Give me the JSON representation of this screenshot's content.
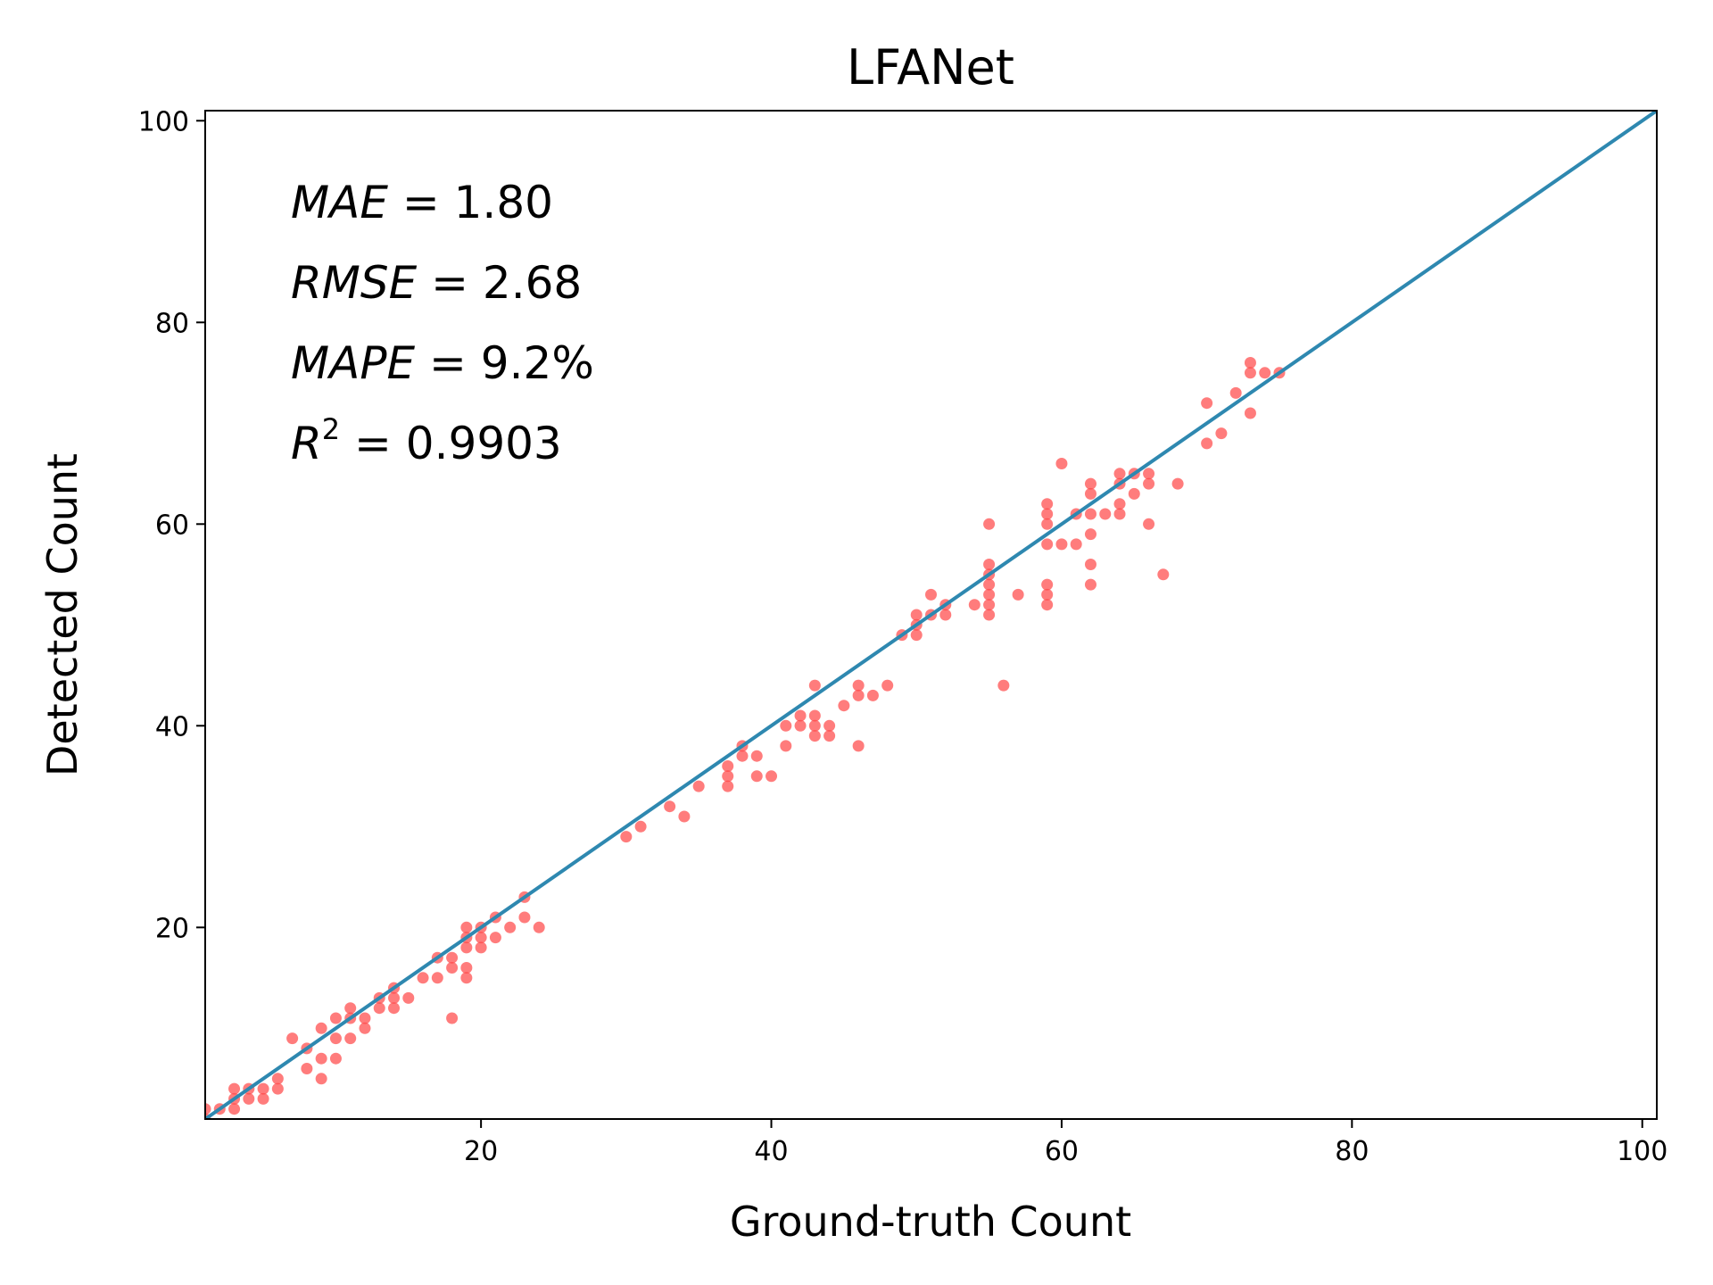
{
  "chart_data": {
    "type": "scatter",
    "title": "LFANet",
    "xlabel": "Ground-truth Count",
    "ylabel": "Detected Count",
    "xlim": [
      1,
      101
    ],
    "ylim": [
      1,
      101
    ],
    "xticks": [
      20,
      40,
      60,
      80,
      100
    ],
    "yticks": [
      20,
      40,
      60,
      80,
      100
    ],
    "xtick_labels": [
      "20",
      "40",
      "60",
      "80",
      "100"
    ],
    "ytick_labels": [
      "20",
      "40",
      "60",
      "80",
      "100"
    ],
    "grid": false,
    "point_color": "#ff4444",
    "line_color": "#2e88b0",
    "reference_line": {
      "from": [
        1,
        1
      ],
      "to": [
        101,
        101
      ]
    },
    "annotations": [
      {
        "name": "MAE",
        "value": "1.80",
        "unit": ""
      },
      {
        "name": "RMSE",
        "value": "2.68",
        "unit": ""
      },
      {
        "name": "MAPE",
        "value": "9.2",
        "unit": "%"
      },
      {
        "name": "R",
        "sup": "2",
        "value": "0.9903",
        "unit": ""
      }
    ],
    "points": [
      [
        1,
        1
      ],
      [
        1,
        2
      ],
      [
        2,
        2
      ],
      [
        3,
        2
      ],
      [
        3,
        3
      ],
      [
        3,
        4
      ],
      [
        4,
        3
      ],
      [
        4,
        4
      ],
      [
        5,
        3
      ],
      [
        5,
        4
      ],
      [
        6,
        4
      ],
      [
        6,
        5
      ],
      [
        7,
        9
      ],
      [
        8,
        6
      ],
      [
        8,
        8
      ],
      [
        9,
        5
      ],
      [
        9,
        7
      ],
      [
        9,
        10
      ],
      [
        10,
        7
      ],
      [
        10,
        9
      ],
      [
        10,
        11
      ],
      [
        11,
        9
      ],
      [
        11,
        11
      ],
      [
        11,
        12
      ],
      [
        12,
        10
      ],
      [
        12,
        11
      ],
      [
        13,
        12
      ],
      [
        13,
        13
      ],
      [
        14,
        12
      ],
      [
        14,
        13
      ],
      [
        14,
        14
      ],
      [
        15,
        13
      ],
      [
        16,
        15
      ],
      [
        17,
        15
      ],
      [
        17,
        17
      ],
      [
        18,
        11
      ],
      [
        18,
        16
      ],
      [
        18,
        17
      ],
      [
        19,
        15
      ],
      [
        19,
        16
      ],
      [
        19,
        18
      ],
      [
        19,
        19
      ],
      [
        19,
        20
      ],
      [
        20,
        18
      ],
      [
        20,
        19
      ],
      [
        20,
        20
      ],
      [
        21,
        19
      ],
      [
        21,
        21
      ],
      [
        22,
        20
      ],
      [
        23,
        21
      ],
      [
        23,
        23
      ],
      [
        24,
        20
      ],
      [
        30,
        29
      ],
      [
        31,
        30
      ],
      [
        33,
        32
      ],
      [
        34,
        31
      ],
      [
        35,
        34
      ],
      [
        37,
        34
      ],
      [
        37,
        35
      ],
      [
        37,
        36
      ],
      [
        38,
        37
      ],
      [
        38,
        38
      ],
      [
        39,
        35
      ],
      [
        39,
        37
      ],
      [
        40,
        35
      ],
      [
        41,
        38
      ],
      [
        41,
        40
      ],
      [
        42,
        40
      ],
      [
        42,
        41
      ],
      [
        43,
        39
      ],
      [
        43,
        40
      ],
      [
        43,
        41
      ],
      [
        43,
        44
      ],
      [
        44,
        39
      ],
      [
        44,
        40
      ],
      [
        45,
        42
      ],
      [
        46,
        38
      ],
      [
        46,
        43
      ],
      [
        46,
        44
      ],
      [
        47,
        43
      ],
      [
        48,
        44
      ],
      [
        49,
        49
      ],
      [
        50,
        49
      ],
      [
        50,
        50
      ],
      [
        50,
        51
      ],
      [
        51,
        51
      ],
      [
        51,
        53
      ],
      [
        52,
        51
      ],
      [
        52,
        52
      ],
      [
        54,
        52
      ],
      [
        55,
        51
      ],
      [
        55,
        52
      ],
      [
        55,
        53
      ],
      [
        55,
        54
      ],
      [
        55,
        55
      ],
      [
        55,
        56
      ],
      [
        55,
        60
      ],
      [
        56,
        44
      ],
      [
        57,
        53
      ],
      [
        59,
        52
      ],
      [
        59,
        53
      ],
      [
        59,
        54
      ],
      [
        59,
        58
      ],
      [
        59,
        60
      ],
      [
        59,
        61
      ],
      [
        59,
        62
      ],
      [
        60,
        58
      ],
      [
        60,
        66
      ],
      [
        61,
        58
      ],
      [
        61,
        61
      ],
      [
        62,
        54
      ],
      [
        62,
        56
      ],
      [
        62,
        59
      ],
      [
        62,
        61
      ],
      [
        62,
        63
      ],
      [
        62,
        64
      ],
      [
        63,
        61
      ],
      [
        64,
        61
      ],
      [
        64,
        62
      ],
      [
        64,
        64
      ],
      [
        64,
        65
      ],
      [
        65,
        63
      ],
      [
        65,
        65
      ],
      [
        66,
        60
      ],
      [
        66,
        64
      ],
      [
        66,
        65
      ],
      [
        67,
        55
      ],
      [
        68,
        64
      ],
      [
        70,
        68
      ],
      [
        70,
        72
      ],
      [
        71,
        69
      ],
      [
        72,
        73
      ],
      [
        73,
        71
      ],
      [
        73,
        75
      ],
      [
        73,
        76
      ],
      [
        74,
        75
      ],
      [
        75,
        75
      ]
    ]
  }
}
